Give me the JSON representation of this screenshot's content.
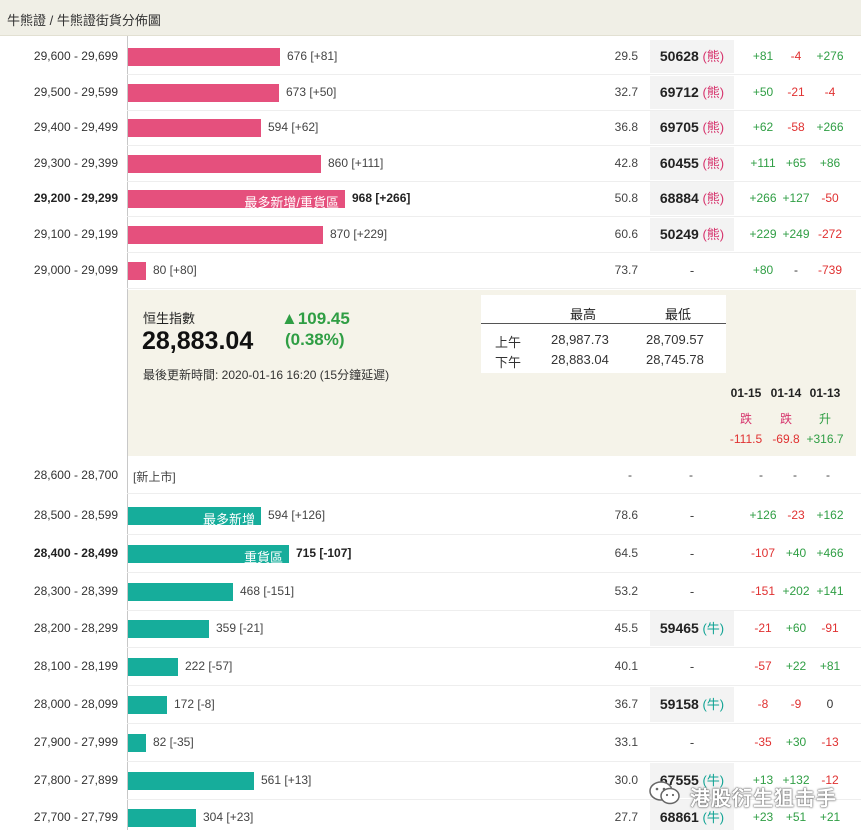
{
  "breadcrumb": "牛熊證 / 牛熊證街貨分佈圖",
  "bear_rows": [
    {
      "range": "29,600 - 29,699",
      "value": "676 [+81]",
      "pct": "29.5",
      "code": "50628",
      "kind": "(熊)",
      "c1": "+81",
      "c2": "-4",
      "c3": "+276",
      "bold": false,
      "tag": ""
    },
    {
      "range": "29,500 - 29,599",
      "value": "673 [+50]",
      "pct": "32.7",
      "code": "69712",
      "kind": "(熊)",
      "c1": "+50",
      "c2": "-21",
      "c3": "-4",
      "bold": false,
      "tag": ""
    },
    {
      "range": "29,400 - 29,499",
      "value": "594 [+62]",
      "pct": "36.8",
      "code": "69705",
      "kind": "(熊)",
      "c1": "+62",
      "c2": "-58",
      "c3": "+266",
      "bold": false,
      "tag": ""
    },
    {
      "range": "29,300 - 29,399",
      "value": "860 [+111]",
      "pct": "42.8",
      "code": "60455",
      "kind": "(熊)",
      "c1": "+111",
      "c2": "+65",
      "c3": "+86",
      "bold": false,
      "tag": ""
    },
    {
      "range": "29,200 - 29,299",
      "value": "968 [+266]",
      "pct": "50.8",
      "code": "68884",
      "kind": "(熊)",
      "c1": "+266",
      "c2": "+127",
      "c3": "-50",
      "bold": true,
      "tag": "最多新增/重貨區"
    },
    {
      "range": "29,100 - 29,199",
      "value": "870 [+229]",
      "pct": "60.6",
      "code": "50249",
      "kind": "(熊)",
      "c1": "+229",
      "c2": "+249",
      "c3": "-272",
      "bold": false,
      "tag": ""
    },
    {
      "range": "29,000 - 29,099",
      "value": "80 [+80]",
      "pct": "73.7",
      "code": "",
      "kind": "",
      "c1": "+80",
      "c2": "-",
      "c3": "-739",
      "bold": false,
      "tag": ""
    }
  ],
  "index_panel": {
    "label": "恒生指數",
    "value": "28,883.04",
    "change": "▲109.45",
    "change_pct": "(0.38%)",
    "updated": "最後更新時間: 2020-01-16 16:20 (15分鐘延遲)",
    "high_header": "最高",
    "low_header": "最低",
    "am_label": "上午",
    "pm_label": "下午",
    "am_high": "28,987.73",
    "am_low": "28,709.57",
    "pm_high": "28,883.04",
    "pm_low": "28,745.78",
    "days": [
      {
        "date": "01-15",
        "word": "跌",
        "chg": "-111.5"
      },
      {
        "date": "01-14",
        "word": "跌",
        "chg": "-69.8"
      },
      {
        "date": "01-13",
        "word": "升",
        "chg": "+316.7"
      }
    ]
  },
  "new_row": {
    "range": "28,600 - 28,700",
    "tag": "[新上市]",
    "pct": "-",
    "code": "-",
    "c1": "-",
    "c2": "-",
    "c3": "-"
  },
  "bull_rows": [
    {
      "range": "28,500 - 28,599",
      "value": "594 [+126]",
      "pct": "78.6",
      "code": "",
      "kind": "",
      "c1": "+126",
      "c2": "-23",
      "c3": "+162",
      "bold": false,
      "tag": "最多新增"
    },
    {
      "range": "28,400 - 28,499",
      "value": "715 [-107]",
      "pct": "64.5",
      "code": "",
      "kind": "",
      "c1": "-107",
      "c2": "+40",
      "c3": "+466",
      "bold": true,
      "tag": "重貨區"
    },
    {
      "range": "28,300 - 28,399",
      "value": "468 [-151]",
      "pct": "53.2",
      "code": "",
      "kind": "",
      "c1": "-151",
      "c2": "+202",
      "c3": "+141",
      "bold": false,
      "tag": ""
    },
    {
      "range": "28,200 - 28,299",
      "value": "359 [-21]",
      "pct": "45.5",
      "code": "59465",
      "kind": "(牛)",
      "c1": "-21",
      "c2": "+60",
      "c3": "-91",
      "bold": false,
      "tag": ""
    },
    {
      "range": "28,100 - 28,199",
      "value": "222 [-57]",
      "pct": "40.1",
      "code": "",
      "kind": "",
      "c1": "-57",
      "c2": "+22",
      "c3": "+81",
      "bold": false,
      "tag": ""
    },
    {
      "range": "28,000 - 28,099",
      "value": "172 [-8]",
      "pct": "36.7",
      "code": "59158",
      "kind": "(牛)",
      "c1": "-8",
      "c2": "-9",
      "c3": "0",
      "bold": false,
      "tag": ""
    },
    {
      "range": "27,900 - 27,999",
      "value": "82 [-35]",
      "pct": "33.1",
      "code": "",
      "kind": "",
      "c1": "-35",
      "c2": "+30",
      "c3": "-13",
      "bold": false,
      "tag": ""
    },
    {
      "range": "27,800 - 27,899",
      "value": "561 [+13]",
      "pct": "30.0",
      "code": "67555",
      "kind": "(牛)",
      "c1": "+13",
      "c2": "+132",
      "c3": "-12",
      "bold": false,
      "tag": ""
    },
    {
      "range": "27,700 - 27,799",
      "value": "304 [+23]",
      "pct": "27.7",
      "code": "68861",
      "kind": "(牛)",
      "c1": "+23",
      "c2": "+51",
      "c3": "+21",
      "bold": false,
      "tag": ""
    }
  ],
  "watermark": "港股衍生狙击手",
  "colors": {
    "bear_bar": "#e5507d",
    "bull_bar": "#16ad9b",
    "positive": "#2f9e44",
    "negative": "#e03131"
  }
}
